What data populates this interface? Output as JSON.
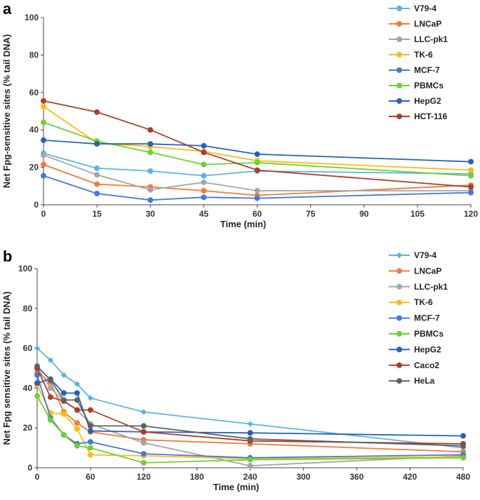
{
  "chart_data": [
    {
      "panel": "a",
      "type": "line",
      "xlabel": "Time (min)",
      "ylabel": "Net Fpg-sensitive sites (% tail DNA)",
      "xlim": [
        0,
        120
      ],
      "ylim": [
        0,
        100
      ],
      "xticks": [
        0,
        15,
        30,
        45,
        60,
        75,
        90,
        105,
        120
      ],
      "yticks": [
        0,
        20,
        40,
        60,
        80,
        100
      ],
      "series": [
        {
          "name": "V79-4",
          "color": "#5ab4e8",
          "marker": "circle",
          "x": [
            0,
            15,
            30,
            45,
            60,
            120
          ],
          "values": [
            27.5,
            19.5,
            18,
            15.5,
            18,
            16.5
          ]
        },
        {
          "name": "LNCaP",
          "color": "#f07b3c",
          "marker": "circle",
          "x": [
            0,
            15,
            30,
            45,
            60,
            120
          ],
          "values": [
            21.5,
            11,
            9.5,
            7.5,
            5,
            10.5
          ]
        },
        {
          "name": "LLC-pk1",
          "color": "#a5a5a5",
          "marker": "circle",
          "x": [
            0,
            15,
            30,
            45,
            60,
            120
          ],
          "values": [
            26.5,
            16,
            8,
            12,
            7.5,
            7.5
          ]
        },
        {
          "name": "TK-6",
          "color": "#fbbd14",
          "marker": "circle",
          "x": [
            0,
            15,
            30,
            45,
            60,
            120
          ],
          "values": [
            52.5,
            33,
            31,
            28.5,
            23.5,
            18.5
          ]
        },
        {
          "name": "MCF-7",
          "color": "#4578e0",
          "marker": "circle",
          "x": [
            0,
            15,
            30,
            45,
            60,
            120
          ],
          "values": [
            15.5,
            6,
            2.5,
            4,
            3.5,
            6.5
          ]
        },
        {
          "name": "PBMCs",
          "color": "#6cd22f",
          "marker": "circle",
          "x": [
            0,
            15,
            30,
            45,
            60,
            120
          ],
          "values": [
            44,
            34,
            28,
            21.5,
            22.5,
            15.5
          ]
        },
        {
          "name": "HepG2",
          "color": "#2563b8",
          "marker": "circle",
          "x": [
            0,
            15,
            30,
            45,
            60,
            120
          ],
          "values": [
            34.5,
            32.5,
            32.5,
            31.5,
            27,
            23
          ]
        },
        {
          "name": "HCT-116",
          "color": "#a9402a",
          "marker": "circle",
          "x": [
            0,
            15,
            30,
            45,
            60,
            120
          ],
          "values": [
            55.5,
            49.5,
            40,
            28,
            18.5,
            9.5
          ]
        }
      ]
    },
    {
      "panel": "b",
      "type": "line",
      "xlabel": "Time (min)",
      "ylabel": "Net Fpg sensitive sites (% tail DNA)",
      "xlim": [
        0,
        480
      ],
      "ylim": [
        0,
        100
      ],
      "xticks": [
        0,
        60,
        120,
        180,
        240,
        300,
        360,
        420,
        480
      ],
      "yticks": [
        0,
        20,
        40,
        60,
        80,
        100
      ],
      "series": [
        {
          "name": "V79-4",
          "color": "#5ab4e8",
          "marker": "diamond",
          "x": [
            0,
            15,
            30,
            45,
            60,
            120,
            240,
            480
          ],
          "values": [
            60,
            54,
            46.5,
            42,
            35,
            28,
            22,
            10
          ]
        },
        {
          "name": "LNCaP",
          "color": "#f07b3c",
          "marker": "circle",
          "x": [
            0,
            15,
            30,
            45,
            60,
            120,
            240,
            480
          ],
          "values": [
            48,
            43,
            28,
            22.5,
            18,
            14,
            12,
            8
          ]
        },
        {
          "name": "LLC-pk1",
          "color": "#a5a5a5",
          "marker": "circle",
          "x": [
            0,
            15,
            30,
            45,
            60,
            120,
            240,
            480
          ],
          "values": [
            50.5,
            40,
            33.5,
            29,
            22,
            12.5,
            1,
            6
          ]
        },
        {
          "name": "TK-6",
          "color": "#fbbd14",
          "marker": "circle",
          "x": [
            0,
            15,
            30,
            45,
            60,
            120,
            240,
            480
          ],
          "values": [
            41.5,
            27.5,
            27,
            19.5,
            6.5,
            6,
            4.5,
            5.5
          ]
        },
        {
          "name": "MCF-7",
          "color": "#4578e0",
          "marker": "circle",
          "x": [
            0,
            15,
            30,
            45,
            60,
            120,
            240,
            480
          ],
          "values": [
            46.5,
            25,
            16.5,
            12,
            13,
            7,
            5,
            6.5
          ]
        },
        {
          "name": "PBMCs",
          "color": "#6cd22f",
          "marker": "circle",
          "x": [
            0,
            15,
            30,
            45,
            60,
            120,
            240,
            480
          ],
          "values": [
            36,
            24,
            16.5,
            11,
            10,
            2.5,
            4,
            5
          ]
        },
        {
          "name": "HepG2",
          "color": "#2563b8",
          "marker": "circle",
          "x": [
            0,
            15,
            30,
            45,
            60,
            120,
            240,
            480
          ],
          "values": [
            42.5,
            44.5,
            37.5,
            37.5,
            18.5,
            18,
            17.5,
            16
          ]
        },
        {
          "name": "Caco2",
          "color": "#a9402a",
          "marker": "circle",
          "x": [
            0,
            15,
            30,
            45,
            60,
            120,
            240,
            480
          ],
          "values": [
            50,
            35.5,
            33.5,
            29,
            29,
            18,
            13.5,
            12
          ]
        },
        {
          "name": "HeLa",
          "color": "#5d6264",
          "marker": "circle",
          "x": [
            0,
            15,
            30,
            45,
            60,
            120,
            240,
            480
          ],
          "values": [
            51,
            44,
            34,
            34,
            21,
            21,
            14.5,
            11
          ]
        }
      ]
    }
  ]
}
